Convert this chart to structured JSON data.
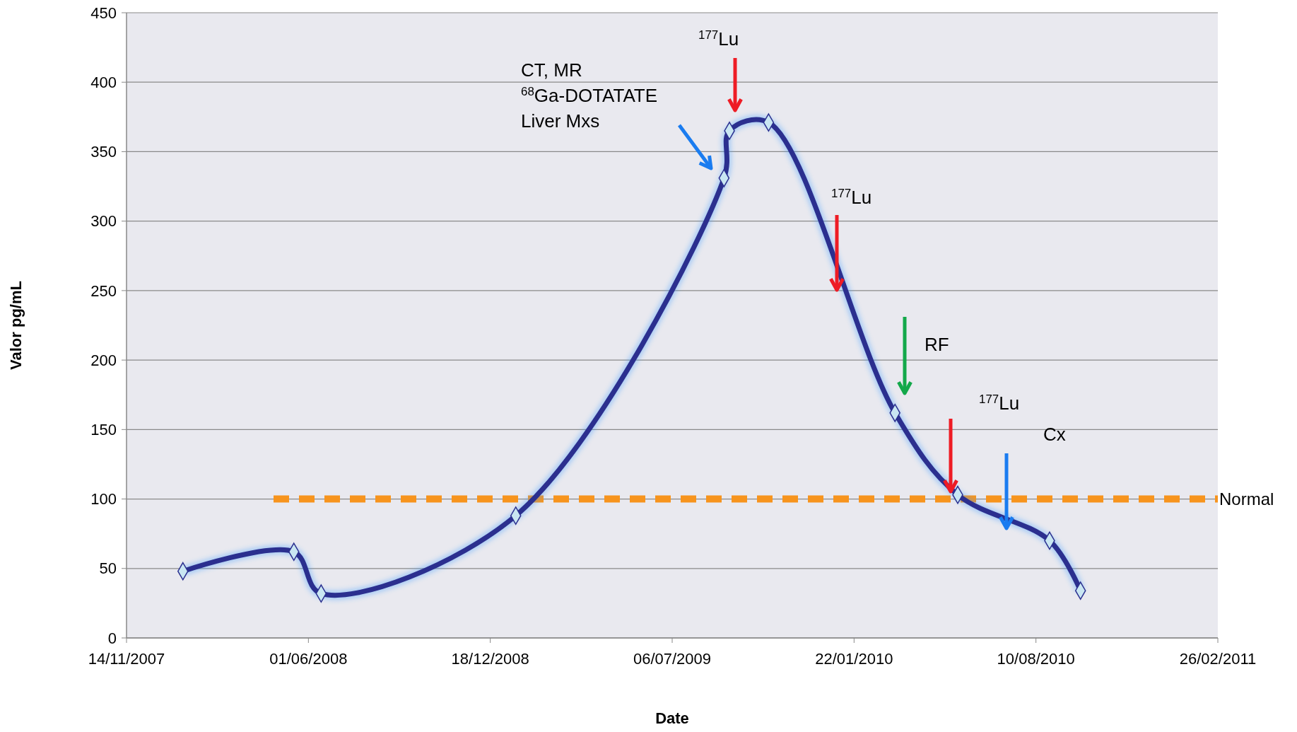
{
  "chart_data": {
    "type": "line",
    "xlabel": "Date",
    "ylabel": "Valor pg/mL",
    "x": [
      "2008-01-15",
      "2008-05-16",
      "2008-06-15",
      "2009-01-15",
      "2009-09-01",
      "2009-09-07",
      "2009-10-20",
      "2010-03-08",
      "2010-05-16",
      "2010-08-25",
      "2010-09-28"
    ],
    "series": [
      {
        "color": "#2b2f8f",
        "values": [
          48,
          62,
          32,
          88,
          331,
          365,
          371,
          162,
          103,
          70,
          34
        ]
      }
    ],
    "xlim": [
      "2007-11-14",
      "2011-02-26"
    ],
    "xticks": [
      {
        "value": "2007-11-14",
        "label": "14/11/2007"
      },
      {
        "value": "2008-06-01",
        "label": "01/06/2008"
      },
      {
        "value": "2008-12-18",
        "label": "18/12/2008"
      },
      {
        "value": "2009-07-06",
        "label": "06/07/2009"
      },
      {
        "value": "2010-01-22",
        "label": "22/01/2010"
      },
      {
        "value": "2010-08-10",
        "label": "10/08/2010"
      },
      {
        "value": "2011-02-26",
        "label": "26/02/2011"
      }
    ],
    "ylim": [
      0,
      450
    ],
    "yticks": [
      0,
      50,
      100,
      150,
      200,
      250,
      300,
      350,
      400,
      450
    ],
    "grid": "y",
    "marker": "diamond",
    "line_style": "solid",
    "ref_lines": [
      {
        "axis": "y",
        "value": 100,
        "label": "Normal",
        "color": "#f7941d",
        "line_style": "dashed"
      }
    ],
    "annotations": [
      "CT, MR\n$^{68}$Ga-DOTATATE\nLiver  Mxs",
      "$^{177}$Lu",
      "$^{177}$Lu",
      "RF",
      "$^{177}$Lu",
      "Cx"
    ]
  }
}
